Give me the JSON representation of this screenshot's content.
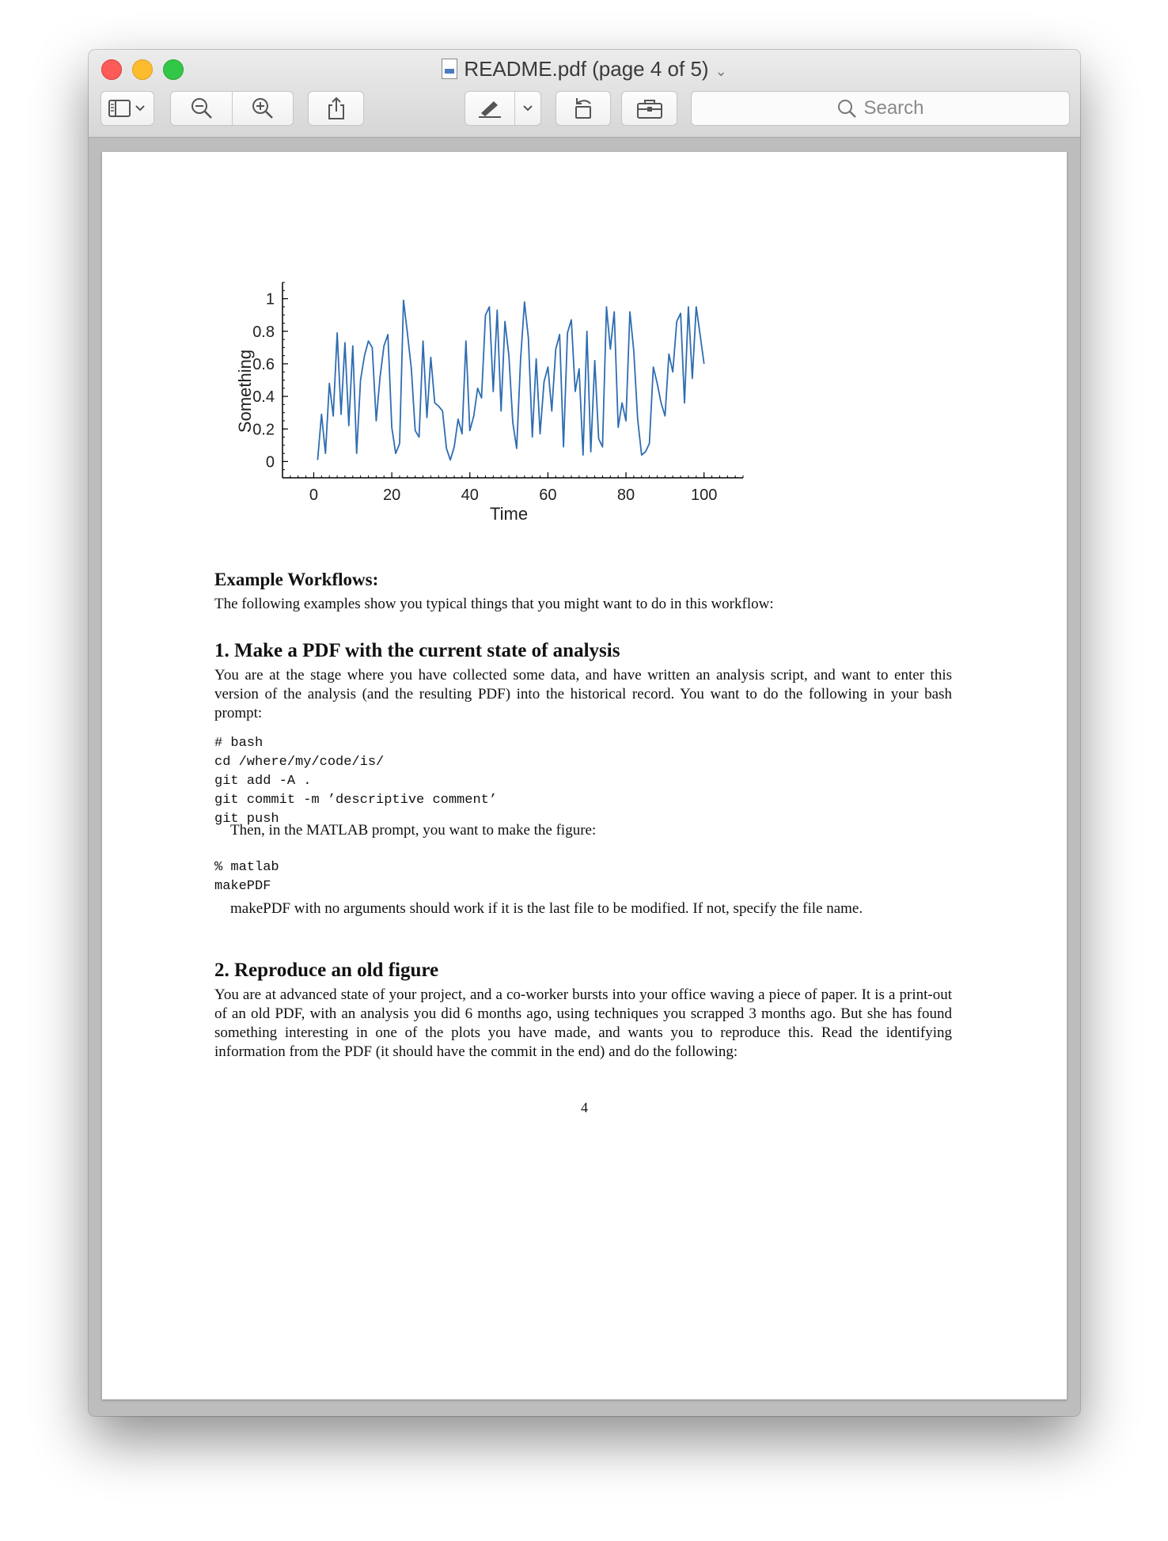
{
  "window": {
    "title": "README.pdf (page 4 of 5)",
    "search_placeholder": "Search"
  },
  "toolbar": {
    "buttons": [
      "sidebar-toggle",
      "zoom-out",
      "zoom-in",
      "share",
      "markup",
      "rotate",
      "toolbox"
    ]
  },
  "chart_data": {
    "type": "line",
    "xlabel": "Time",
    "ylabel": "Something",
    "xlim": [
      -8,
      110
    ],
    "ylim": [
      -0.1,
      1.1
    ],
    "xticks": [
      0,
      20,
      40,
      60,
      80,
      100
    ],
    "yticks": [
      0,
      0.2,
      0.4,
      0.6,
      0.8,
      1
    ],
    "grid": false,
    "color": "#2f6db1",
    "series": [
      {
        "x": [
          1,
          2,
          3,
          4,
          5,
          6,
          7,
          8,
          9,
          10,
          11,
          12,
          13,
          14,
          15,
          16,
          17,
          18,
          19,
          20,
          21,
          22,
          23,
          24,
          25,
          26,
          27,
          28,
          29,
          30,
          31,
          32,
          33,
          34,
          35,
          36,
          37,
          38,
          39,
          40,
          41,
          42,
          43,
          44,
          45,
          46,
          47,
          48,
          49,
          50,
          51,
          52,
          53,
          54,
          55,
          56,
          57,
          58,
          59,
          60,
          61,
          62,
          63,
          64,
          65,
          66,
          67,
          68,
          69,
          70,
          71,
          72,
          73,
          74,
          75,
          76,
          77,
          78,
          79,
          80,
          81,
          82,
          83,
          84,
          85,
          86,
          87,
          88,
          89,
          90,
          91,
          92,
          93,
          94,
          95,
          96,
          97,
          98,
          99,
          100
        ],
        "values": [
          0.01,
          0.29,
          0.05,
          0.48,
          0.28,
          0.79,
          0.29,
          0.73,
          0.22,
          0.71,
          0.05,
          0.5,
          0.65,
          0.74,
          0.7,
          0.25,
          0.52,
          0.71,
          0.78,
          0.21,
          0.05,
          0.11,
          0.99,
          0.79,
          0.57,
          0.19,
          0.15,
          0.74,
          0.27,
          0.64,
          0.36,
          0.34,
          0.31,
          0.08,
          0.01,
          0.09,
          0.26,
          0.17,
          0.74,
          0.19,
          0.28,
          0.45,
          0.39,
          0.9,
          0.95,
          0.43,
          0.93,
          0.31,
          0.86,
          0.65,
          0.24,
          0.08,
          0.63,
          0.98,
          0.76,
          0.15,
          0.63,
          0.17,
          0.49,
          0.58,
          0.31,
          0.69,
          0.78,
          0.09,
          0.79,
          0.87,
          0.43,
          0.57,
          0.04,
          0.8,
          0.06,
          0.62,
          0.14,
          0.09,
          0.95,
          0.69,
          0.92,
          0.21,
          0.36,
          0.25,
          0.92,
          0.68,
          0.26,
          0.04,
          0.06,
          0.11,
          0.58,
          0.48,
          0.36,
          0.28,
          0.66,
          0.55,
          0.86,
          0.91,
          0.36,
          0.95,
          0.51,
          0.95,
          0.78,
          0.6
        ]
      }
    ]
  },
  "document": {
    "section_heading": "Example Workflows:",
    "intro": "The following examples show you typical things that you might want to do in this workflow:",
    "s1_heading": "1.  Make a PDF with the current state of analysis",
    "s1_para": "You are at the stage where you have collected some data, and have written an analysis script, and want to enter this version of the analysis (and the resulting PDF) into the historical record.  You want to do the following in your bash prompt:",
    "code_bash": [
      "# bash",
      "cd /where/my/code/is/",
      "git add -A .",
      "git commit -m ’descriptive comment’",
      "git push"
    ],
    "then_text": "Then, in the MATLAB prompt, you want to make the figure:",
    "code_matlab": [
      "% matlab",
      "makePDF"
    ],
    "makepdf_note": "makePDF with no arguments should work if it is the last file to be modified.  If not, specify the file name.",
    "s2_heading": "2.  Reproduce an old figure",
    "s2_para": "You are at advanced state of your project, and a co-worker bursts into your office waving a piece of paper. It is a print-out of an old PDF, with an analysis you did 6 months ago, using techniques you scrapped 3 months ago.  But she has found something interesting in one of the plots you have made, and wants you to reproduce this.  Read the identifying information from the PDF (it should have the commit in the end) and do the following:",
    "page_number": "4"
  }
}
